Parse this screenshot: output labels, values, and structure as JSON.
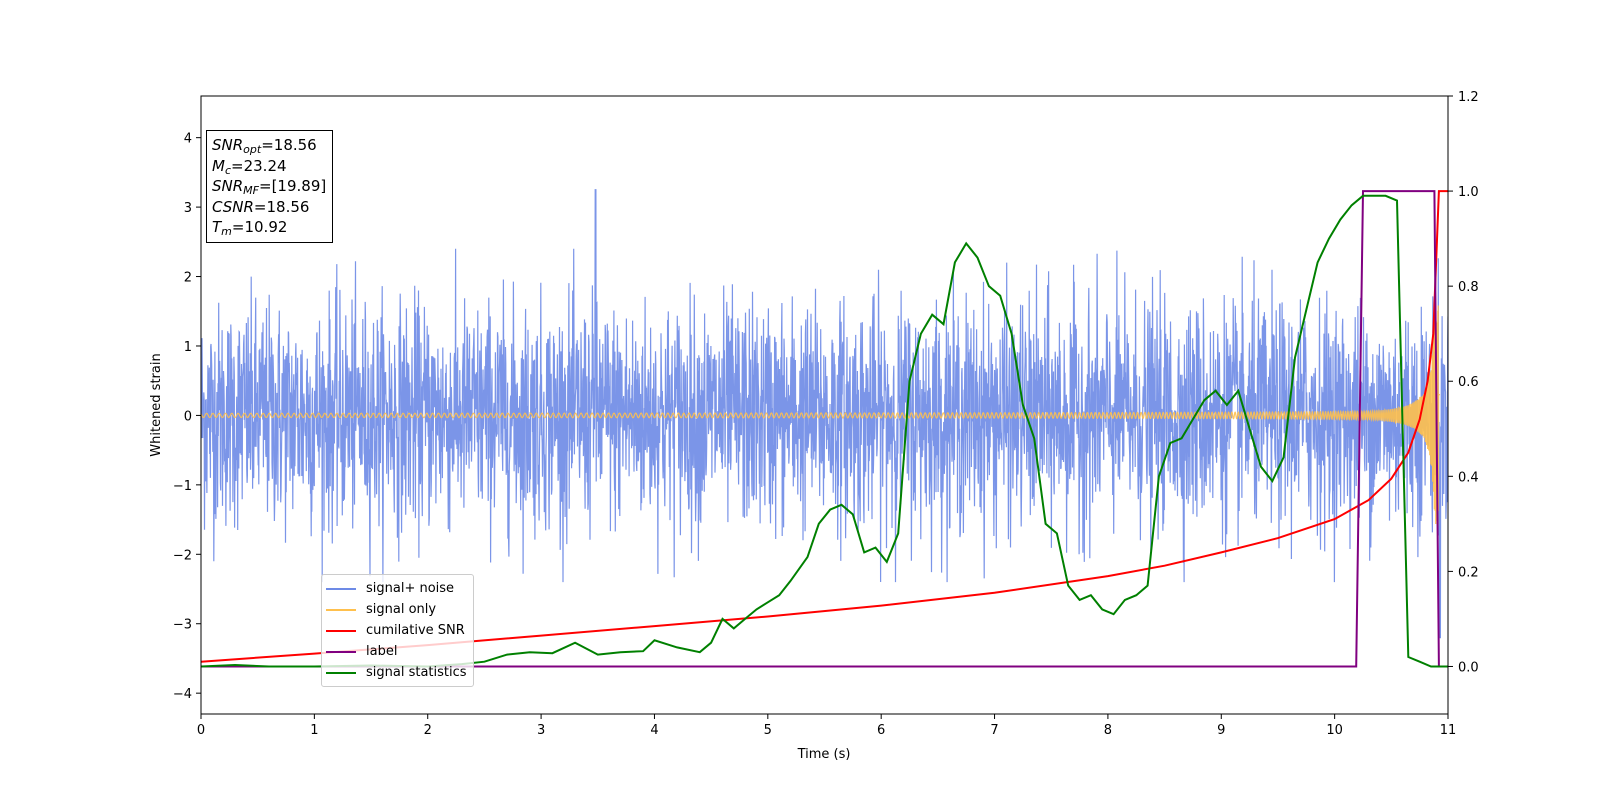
{
  "chart_data": {
    "type": "line",
    "xlabel": "Time (s)",
    "ylabel": "Whitened strain",
    "xlim": [
      0,
      11
    ],
    "ylim": [
      -4.3,
      4.6
    ],
    "y2lim": [
      -0.1,
      1.2
    ],
    "x_ticks": [
      "0",
      "1",
      "2",
      "3",
      "4",
      "5",
      "6",
      "7",
      "8",
      "9",
      "10",
      "11"
    ],
    "y_ticks": [
      "4",
      "3",
      "2",
      "1",
      "0",
      "−1",
      "−2",
      "−3",
      "−4"
    ],
    "y2_ticks": [
      "1.2",
      "1.0",
      "0.8",
      "0.6",
      "0.4",
      "0.2",
      "0.0"
    ],
    "grid": false,
    "legend_position": "lower-left",
    "annotation": {
      "snr_opt": "18.56",
      "mc": "23.24",
      "snr_mf": "[19.89]",
      "csnr": "18.56",
      "tm": "10.92"
    },
    "series": [
      {
        "name": "signal+ noise",
        "color": "#6d8ae6",
        "axis": "left",
        "description": "whitened noise envelope approx ±1.5 with spikes to ±2.4, max spike 3.25 at t=3.48",
        "envelope": 1.5
      },
      {
        "name": "signal only",
        "color": "#ffc04d",
        "axis": "left",
        "chirp_end_time": 10.92,
        "final_amplitude": 1.6
      },
      {
        "name": "cumilative SNR",
        "color": "#ff0000",
        "axis": "right",
        "x": [
          0,
          1,
          2,
          3,
          4,
          5,
          6,
          7,
          8,
          8.5,
          9,
          9.5,
          10,
          10.3,
          10.5,
          10.65,
          10.75,
          10.82,
          10.87,
          10.92,
          11.0
        ],
        "y": [
          0.01,
          0.027,
          0.045,
          0.065,
          0.085,
          0.105,
          0.128,
          0.155,
          0.19,
          0.212,
          0.24,
          0.27,
          0.31,
          0.35,
          0.395,
          0.45,
          0.52,
          0.6,
          0.7,
          1.0,
          1.0
        ]
      },
      {
        "name": "label",
        "color": "#800080",
        "axis": "right",
        "x": [
          0,
          10.19,
          10.25,
          10.88,
          10.92,
          11.0
        ],
        "y": [
          0,
          0,
          1,
          1,
          0,
          0
        ]
      },
      {
        "name": "signal statistics",
        "color": "#008000",
        "axis": "right",
        "x": [
          0,
          0.3,
          0.6,
          1,
          1.5,
          2,
          2.3,
          2.5,
          2.7,
          2.9,
          3.1,
          3.3,
          3.5,
          3.7,
          3.9,
          4.0,
          4.2,
          4.4,
          4.5,
          4.6,
          4.7,
          4.8,
          4.9,
          5.0,
          5.1,
          5.2,
          5.35,
          5.45,
          5.55,
          5.65,
          5.75,
          5.85,
          5.95,
          6.05,
          6.15,
          6.25,
          6.35,
          6.45,
          6.55,
          6.65,
          6.75,
          6.85,
          6.95,
          7.05,
          7.15,
          7.25,
          7.35,
          7.45,
          7.55,
          7.65,
          7.75,
          7.85,
          7.95,
          8.05,
          8.15,
          8.25,
          8.35,
          8.45,
          8.55,
          8.65,
          8.75,
          8.85,
          8.95,
          9.05,
          9.15,
          9.25,
          9.35,
          9.45,
          9.55,
          9.65,
          9.75,
          9.85,
          9.95,
          10.05,
          10.15,
          10.25,
          10.35,
          10.45,
          10.55,
          10.65,
          10.75,
          10.85,
          10.9,
          10.95,
          11.0
        ],
        "y": [
          0,
          0.003,
          0,
          0,
          0.002,
          0,
          0.005,
          0.01,
          0.025,
          0.03,
          0.028,
          0.05,
          0.025,
          0.03,
          0.032,
          0.055,
          0.04,
          0.03,
          0.05,
          0.1,
          0.08,
          0.1,
          0.12,
          0.135,
          0.15,
          0.18,
          0.23,
          0.3,
          0.33,
          0.34,
          0.32,
          0.24,
          0.25,
          0.22,
          0.28,
          0.6,
          0.7,
          0.74,
          0.72,
          0.85,
          0.89,
          0.86,
          0.8,
          0.78,
          0.7,
          0.55,
          0.48,
          0.3,
          0.28,
          0.17,
          0.14,
          0.15,
          0.12,
          0.11,
          0.14,
          0.15,
          0.17,
          0.4,
          0.47,
          0.48,
          0.52,
          0.56,
          0.58,
          0.55,
          0.58,
          0.5,
          0.42,
          0.39,
          0.44,
          0.65,
          0.75,
          0.85,
          0.9,
          0.94,
          0.97,
          0.99,
          0.99,
          0.99,
          0.98,
          0.02,
          0.01,
          0.0,
          0.0,
          0.0,
          0.0
        ]
      }
    ]
  }
}
